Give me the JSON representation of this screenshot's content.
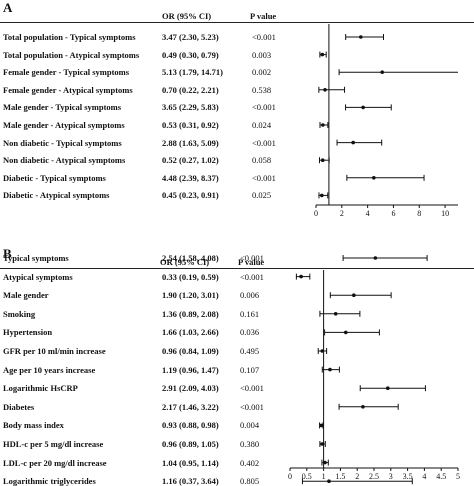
{
  "chart_data": [
    {
      "type": "forest",
      "panel_label": "A",
      "columns": {
        "or": "OR (95% CI)",
        "p": "P value"
      },
      "xlim": [
        0,
        11
      ],
      "xticks": [
        0,
        2,
        4,
        6,
        8,
        10
      ],
      "reference_line": 1,
      "rows": [
        {
          "label": "Total population - Typical symptoms",
          "or": "3.47 (2.30, 5.23)",
          "p": "<0.001",
          "est": 3.47,
          "lo": 2.3,
          "hi": 5.23
        },
        {
          "label": "Total population - Atypical symptoms",
          "or": "0.49 (0.30, 0.79)",
          "p": "0.003",
          "est": 0.49,
          "lo": 0.3,
          "hi": 0.79
        },
        {
          "label": "Female gender - Typical symptoms",
          "or": "5.13 (1.79, 14.71)",
          "p": "0.002",
          "est": 5.13,
          "lo": 1.79,
          "hi": 14.71
        },
        {
          "label": "Female gender - Atypical symptoms",
          "or": "0.70 (0.22, 2.21)",
          "p": "0.538",
          "est": 0.7,
          "lo": 0.22,
          "hi": 2.21
        },
        {
          "label": "Male gender - Typical symptoms",
          "or": "3.65 (2.29, 5.83)",
          "p": "<0.001",
          "est": 3.65,
          "lo": 2.29,
          "hi": 5.83
        },
        {
          "label": "Male gender - Atypical symptoms",
          "or": "0.53 (0.31, 0.92)",
          "p": "0.024",
          "est": 0.53,
          "lo": 0.31,
          "hi": 0.92
        },
        {
          "label": "Non diabetic - Typical symptoms",
          "or": "2.88 (1.63, 5.09)",
          "p": "<0.001",
          "est": 2.88,
          "lo": 1.63,
          "hi": 5.09
        },
        {
          "label": "Non diabetic - Atypical symptoms",
          "or": "0.52 (0.27, 1.02)",
          "p": "0.058",
          "est": 0.52,
          "lo": 0.27,
          "hi": 1.02
        },
        {
          "label": "Diabetic - Typical symptoms",
          "or": "4.48 (2.39, 8.37)",
          "p": "<0.001",
          "est": 4.48,
          "lo": 2.39,
          "hi": 8.37
        },
        {
          "label": "Diabetic - Atypical symptoms",
          "or": "0.45 (0.23, 0.91)",
          "p": "0.025",
          "est": 0.45,
          "lo": 0.23,
          "hi": 0.91
        }
      ]
    },
    {
      "type": "forest",
      "panel_label": "B",
      "columns": {
        "or": "OR (95% CI)",
        "p": "P value"
      },
      "xlim": [
        0,
        5
      ],
      "xticks": [
        0,
        0.5,
        1,
        1.5,
        2,
        2.5,
        3,
        3.5,
        4,
        4.5,
        5
      ],
      "reference_line": 1,
      "rows": [
        {
          "label": "Typical symptoms",
          "or": "2.54 (1.58, 4.08)",
          "p": "<0.001",
          "est": 2.54,
          "lo": 1.58,
          "hi": 4.08
        },
        {
          "label": "Atypical symptoms",
          "or": "0.33 (0.19, 0.59)",
          "p": "<0.001",
          "est": 0.33,
          "lo": 0.19,
          "hi": 0.59
        },
        {
          "label": "Male gender",
          "or": "1.90 (1.20, 3.01)",
          "p": "0.006",
          "est": 1.9,
          "lo": 1.2,
          "hi": 3.01
        },
        {
          "label": "Smoking",
          "or": "1.36 (0.89, 2.08)",
          "p": "0.161",
          "est": 1.36,
          "lo": 0.89,
          "hi": 2.08
        },
        {
          "label": "Hypertension",
          "or": "1.66 (1.03, 2.66)",
          "p": "0.036",
          "est": 1.66,
          "lo": 1.03,
          "hi": 2.66
        },
        {
          "label": "GFR per 10 ml/min increase",
          "or": "0.96 (0.84, 1.09)",
          "p": "0.495",
          "est": 0.96,
          "lo": 0.84,
          "hi": 1.09
        },
        {
          "label": "Age per 10 years increase",
          "or": "1.19 (0.96, 1.47)",
          "p": "0.107",
          "est": 1.19,
          "lo": 0.96,
          "hi": 1.47
        },
        {
          "label": "Logarithmic HsCRP",
          "or": "2.91 (2.09, 4.03)",
          "p": "<0.001",
          "est": 2.91,
          "lo": 2.09,
          "hi": 4.03
        },
        {
          "label": "Diabetes",
          "or": "2.17 (1.46, 3.22)",
          "p": "<0.001",
          "est": 2.17,
          "lo": 1.46,
          "hi": 3.22
        },
        {
          "label": "Body mass index",
          "or": "0.93 (0.88, 0.98)",
          "p": "0.004",
          "est": 0.93,
          "lo": 0.88,
          "hi": 0.98
        },
        {
          "label": "HDL-c per 5 mg/dl increase",
          "or": "0.96 (0.89, 1.05)",
          "p": "0.380",
          "est": 0.96,
          "lo": 0.89,
          "hi": 1.05
        },
        {
          "label": "LDL-c per 20 mg/dl increase",
          "or": "1.04 (0.95, 1.14)",
          "p": "0.402",
          "est": 1.04,
          "lo": 0.95,
          "hi": 1.14
        },
        {
          "label": "Logarithmic triglycerides",
          "or": "1.16 (0.37, 3.64)",
          "p": "0.805",
          "est": 1.16,
          "lo": 0.37,
          "hi": 3.64
        }
      ]
    }
  ]
}
